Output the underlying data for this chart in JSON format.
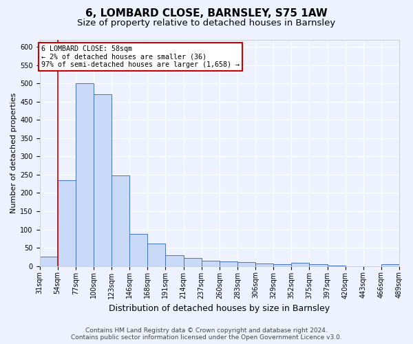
{
  "title1": "6, LOMBARD CLOSE, BARNSLEY, S75 1AW",
  "title2": "Size of property relative to detached houses in Barnsley",
  "xlabel": "Distribution of detached houses by size in Barnsley",
  "ylabel": "Number of detached properties",
  "footer1": "Contains HM Land Registry data © Crown copyright and database right 2024.",
  "footer2": "Contains public sector information licensed under the Open Government Licence v3.0.",
  "annotation_title": "6 LOMBARD CLOSE: 58sqm",
  "annotation_line1": "← 2% of detached houses are smaller (36)",
  "annotation_line2": "97% of semi-detached houses are larger (1,658) →",
  "bar_values": [
    25,
    235,
    500,
    470,
    248,
    88,
    62,
    30,
    22,
    15,
    12,
    10,
    7,
    5,
    8,
    5,
    2,
    0,
    0,
    5
  ],
  "bar_labels": [
    "31sqm",
    "54sqm",
    "77sqm",
    "100sqm",
    "123sqm",
    "146sqm",
    "168sqm",
    "191sqm",
    "214sqm",
    "237sqm",
    "260sqm",
    "283sqm",
    "306sqm",
    "329sqm",
    "352sqm",
    "375sqm",
    "397sqm",
    "420sqm",
    "443sqm",
    "466sqm",
    "489sqm"
  ],
  "bar_color": "#c9daf8",
  "bar_edge_color": "#4472c4",
  "red_line_x": 1.0,
  "ylim": [
    0,
    620
  ],
  "yticks": [
    0,
    50,
    100,
    150,
    200,
    250,
    300,
    350,
    400,
    450,
    500,
    550,
    600
  ],
  "background_color": "#eef2ff",
  "grid_color": "#ffffff",
  "annotation_box_color": "#ffffff",
  "annotation_border_color": "#cc0000",
  "red_line_color": "#cc0000",
  "title1_fontsize": 11,
  "title2_fontsize": 9.5,
  "xlabel_fontsize": 9,
  "ylabel_fontsize": 8,
  "tick_fontsize": 7,
  "footer_fontsize": 6.5
}
